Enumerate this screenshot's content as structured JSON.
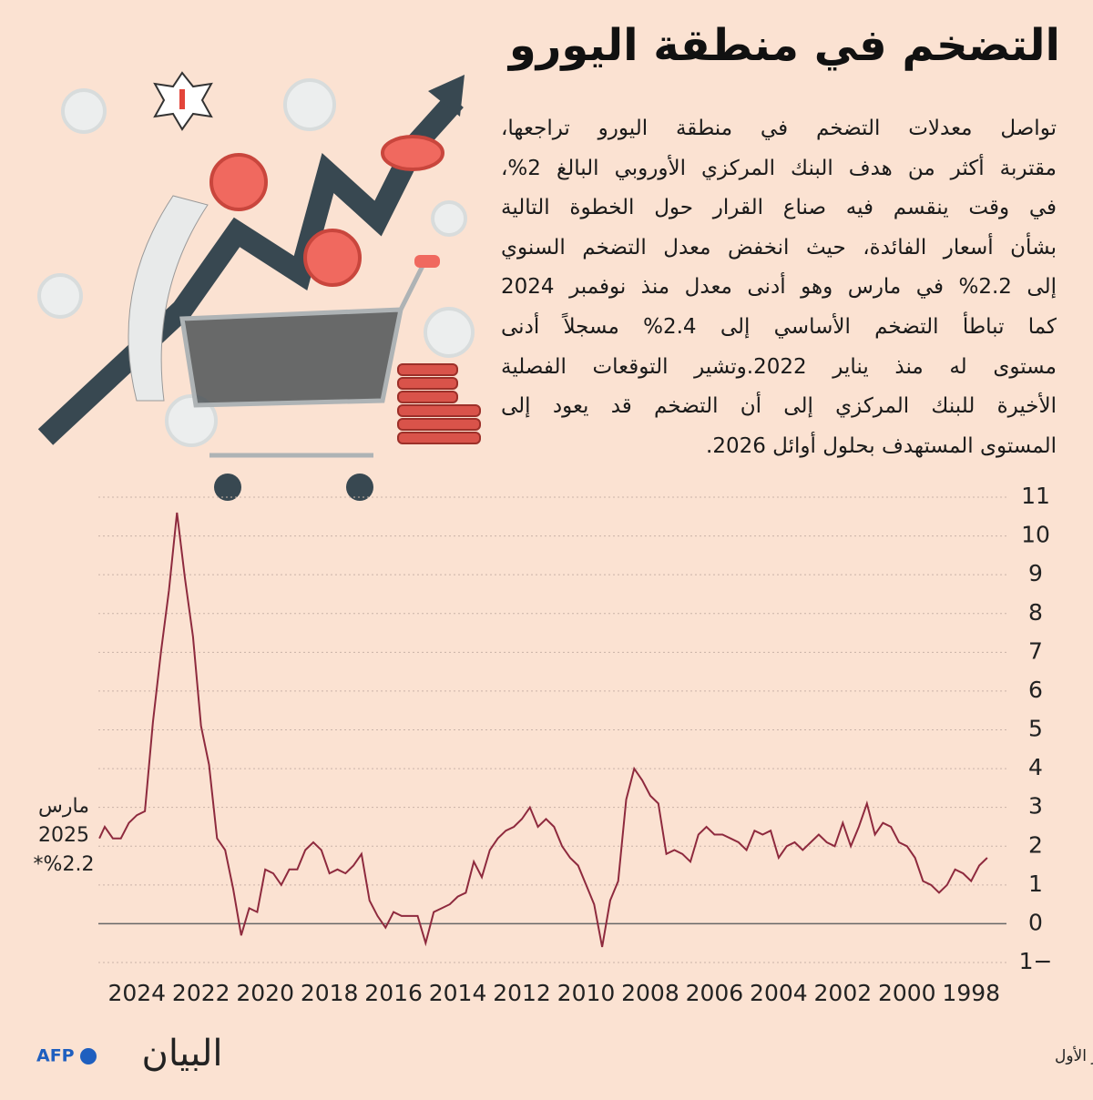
{
  "header": {
    "title": "التضخم في منطقة اليورو"
  },
  "body": [
    "تواصل معدلات التضخم في منطقة اليورو تراجعها،",
    "مقتربة أكثر من هدف البنك المركزي الأوروبي البالغ 2%،",
    "في وقت ينقسم فيه صناع القرار حول الخطوة التالية",
    "بشأن أسعار الفائدة، حيث انخفض معدل التضخم السنوي",
    "إلى 2.2% في مارس وهو أدنى معدل منذ نوفمبر 2024",
    "كما تباطأ التضخم الأساسي إلى 2.4% مسجلاً أدنى",
    "مستوى له منذ يناير 2022.وتشير التوقعات الفصلية",
    "الأخيرة للبنك المركزي إلى أن التضخم قد يعود إلى",
    "المستوى المستهدف بحلول أوائل 2026."
  ],
  "chart_data": {
    "type": "line",
    "color": "#8e2a3e",
    "annotation": [
      "مارس",
      "2025",
      "%2.2*"
    ],
    "x": [
      1997.5,
      1997.75,
      1998,
      1998.25,
      1998.5,
      1998.75,
      1999,
      1999.25,
      1999.5,
      1999.75,
      2000,
      2000.25,
      2000.5,
      2000.75,
      2001,
      2001.25,
      2001.5,
      2001.75,
      2002,
      2002.25,
      2002.5,
      2002.75,
      2003,
      2003.25,
      2003.5,
      2003.75,
      2004,
      2004.25,
      2004.5,
      2004.75,
      2005,
      2005.25,
      2005.5,
      2005.75,
      2006,
      2006.25,
      2006.5,
      2006.75,
      2007,
      2007.25,
      2007.5,
      2007.75,
      2008,
      2008.25,
      2008.5,
      2008.75,
      2009,
      2009.25,
      2009.5,
      2009.75,
      2010,
      2010.25,
      2010.5,
      2010.75,
      2011,
      2011.25,
      2011.5,
      2011.75,
      2012,
      2012.25,
      2012.5,
      2012.75,
      2013,
      2013.25,
      2013.5,
      2013.75,
      2014,
      2014.25,
      2014.5,
      2014.75,
      2015,
      2015.25,
      2015.5,
      2015.75,
      2016,
      2016.25,
      2016.5,
      2016.75,
      2017,
      2017.25,
      2017.5,
      2017.75,
      2018,
      2018.25,
      2018.5,
      2018.75,
      2019,
      2019.25,
      2019.5,
      2019.75,
      2020,
      2020.25,
      2020.5,
      2020.75,
      2021,
      2021.25,
      2021.5,
      2021.75,
      2022,
      2022.25,
      2022.5,
      2022.75,
      2023,
      2023.25,
      2023.5,
      2023.75,
      2024,
      2024.25,
      2024.5,
      2024.75,
      2025,
      2025.17
    ],
    "values": [
      1.7,
      1.5,
      1.1,
      1.3,
      1.4,
      1.0,
      0.8,
      1.0,
      1.1,
      1.7,
      2.0,
      2.1,
      2.5,
      2.6,
      2.3,
      3.1,
      2.5,
      2.0,
      2.6,
      2.0,
      2.1,
      2.3,
      2.1,
      1.9,
      2.1,
      2.0,
      1.7,
      2.4,
      2.3,
      2.4,
      1.9,
      2.1,
      2.2,
      2.3,
      2.3,
      2.5,
      2.3,
      1.6,
      1.8,
      1.9,
      1.8,
      3.1,
      3.3,
      3.7,
      4.0,
      3.2,
      1.1,
      0.6,
      -0.6,
      0.5,
      1.0,
      1.5,
      1.7,
      2.0,
      2.5,
      2.7,
      2.5,
      3.0,
      2.7,
      2.5,
      2.4,
      2.2,
      1.9,
      1.2,
      1.6,
      0.8,
      0.7,
      0.5,
      0.4,
      0.3,
      -0.5,
      0.2,
      0.2,
      0.2,
      0.3,
      -0.1,
      0.2,
      0.6,
      1.8,
      1.5,
      1.3,
      1.4,
      1.3,
      1.9,
      2.1,
      1.9,
      1.4,
      1.4,
      1.0,
      1.3,
      1.4,
      0.3,
      0.4,
      -0.3,
      0.9,
      1.9,
      2.2,
      4.1,
      5.1,
      7.4,
      8.9,
      10.6,
      8.6,
      7.0,
      5.2,
      2.9,
      2.8,
      2.6,
      2.2,
      2.2,
      2.5,
      2.2
    ],
    "xlim": [
      2025.2,
      1996.9
    ],
    "xticks": [
      2024,
      2022,
      2020,
      2018,
      2016,
      2014,
      2012,
      2010,
      2008,
      2006,
      2004,
      2002,
      2000,
      1998
    ],
    "ylim": [
      -1,
      11
    ],
    "yticks": [
      {
        "value": -1,
        "label": "1−"
      },
      0,
      1,
      2,
      3,
      4,
      5,
      6,
      7,
      8,
      9,
      10,
      11
    ],
    "grid": true
  },
  "footer": {
    "source": "المصدر: يوروستات | *التقدير الأول",
    "logo": "البيان",
    "agency": "AFP"
  }
}
